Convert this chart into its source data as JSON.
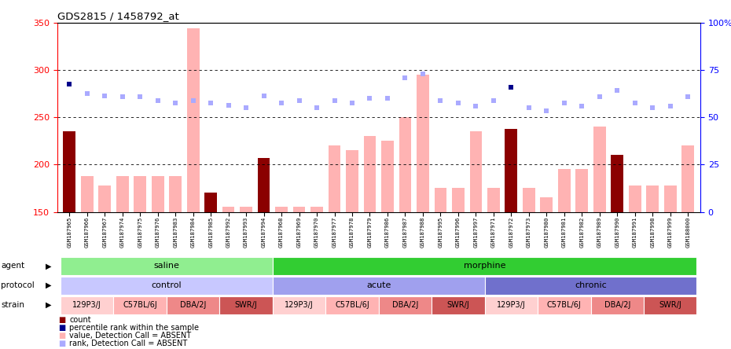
{
  "title": "GDS2815 / 1458792_at",
  "samples": [
    "GSM187965",
    "GSM187966",
    "GSM187967",
    "GSM187974",
    "GSM187975",
    "GSM187976",
    "GSM187983",
    "GSM187984",
    "GSM187985",
    "GSM187992",
    "GSM187993",
    "GSM187994",
    "GSM187968",
    "GSM187969",
    "GSM187970",
    "GSM187977",
    "GSM187978",
    "GSM187979",
    "GSM187986",
    "GSM187987",
    "GSM187988",
    "GSM187995",
    "GSM187996",
    "GSM187997",
    "GSM187971",
    "GSM187972",
    "GSM187973",
    "GSM187980",
    "GSM187981",
    "GSM187982",
    "GSM187989",
    "GSM187990",
    "GSM187991",
    "GSM187998",
    "GSM187999",
    "GSM188000"
  ],
  "bar_values": [
    235,
    188,
    178,
    188,
    188,
    188,
    188,
    344,
    170,
    155,
    155,
    207,
    155,
    155,
    155,
    220,
    215,
    230,
    225,
    250,
    295,
    175,
    175,
    235,
    175,
    238,
    175,
    165,
    195,
    195,
    240,
    210,
    178,
    178,
    178,
    220
  ],
  "bar_colors": [
    "#8B0000",
    "#ffb3b3",
    "#ffb3b3",
    "#ffb3b3",
    "#ffb3b3",
    "#ffb3b3",
    "#ffb3b3",
    "#ffb3b3",
    "#8B0000",
    "#ffb3b3",
    "#ffb3b3",
    "#8B0000",
    "#ffb3b3",
    "#ffb3b3",
    "#ffb3b3",
    "#ffb3b3",
    "#ffb3b3",
    "#ffb3b3",
    "#ffb3b3",
    "#ffb3b3",
    "#ffb3b3",
    "#ffb3b3",
    "#ffb3b3",
    "#ffb3b3",
    "#ffb3b3",
    "#8B0000",
    "#ffb3b3",
    "#ffb3b3",
    "#ffb3b3",
    "#ffb3b3",
    "#ffb3b3",
    "#8B0000",
    "#ffb3b3",
    "#ffb3b3",
    "#ffb3b3",
    "#ffb3b3"
  ],
  "rank_values": [
    285,
    275,
    273,
    272,
    272,
    268,
    265,
    268,
    265,
    263,
    260,
    273,
    265,
    268,
    260,
    268,
    265,
    270,
    270,
    292,
    296,
    268,
    265,
    262,
    268,
    282,
    260,
    257,
    265,
    262,
    272,
    278,
    265,
    260,
    262,
    272
  ],
  "rank_colors": [
    "#00008B",
    "#aaaaff",
    "#aaaaff",
    "#aaaaff",
    "#aaaaff",
    "#aaaaff",
    "#aaaaff",
    "#aaaaff",
    "#aaaaff",
    "#aaaaff",
    "#aaaaff",
    "#aaaaff",
    "#aaaaff",
    "#aaaaff",
    "#aaaaff",
    "#aaaaff",
    "#aaaaff",
    "#aaaaff",
    "#aaaaff",
    "#aaaaff",
    "#aaaaff",
    "#aaaaff",
    "#aaaaff",
    "#aaaaff",
    "#aaaaff",
    "#00008B",
    "#aaaaff",
    "#aaaaff",
    "#aaaaff",
    "#aaaaff",
    "#aaaaff",
    "#aaaaff",
    "#aaaaff",
    "#aaaaff",
    "#aaaaff",
    "#aaaaff"
  ],
  "ylim_left": [
    150,
    350
  ],
  "ylim_right": [
    0,
    100
  ],
  "yticks_left": [
    150,
    200,
    250,
    300,
    350
  ],
  "yticks_right": [
    0,
    25,
    50,
    75,
    100
  ],
  "ytick_dotted": [
    200,
    250,
    300
  ],
  "agent_groups": [
    {
      "label": "saline",
      "start": 0,
      "end": 12,
      "color": "#90EE90"
    },
    {
      "label": "morphine",
      "start": 12,
      "end": 36,
      "color": "#32CD32"
    }
  ],
  "protocol_groups": [
    {
      "label": "control",
      "start": 0,
      "end": 12,
      "color": "#c8c8ff"
    },
    {
      "label": "acute",
      "start": 12,
      "end": 24,
      "color": "#a0a0ee"
    },
    {
      "label": "chronic",
      "start": 24,
      "end": 36,
      "color": "#7070cc"
    }
  ],
  "strain_groups": [
    {
      "label": "129P3/J",
      "start": 0,
      "end": 3,
      "color": "#ffd0d0"
    },
    {
      "label": "C57BL/6J",
      "start": 3,
      "end": 6,
      "color": "#ffb3b3"
    },
    {
      "label": "DBA/2J",
      "start": 6,
      "end": 9,
      "color": "#ee8888"
    },
    {
      "label": "SWR/J",
      "start": 9,
      "end": 12,
      "color": "#cc5555"
    },
    {
      "label": "129P3/J",
      "start": 12,
      "end": 15,
      "color": "#ffd0d0"
    },
    {
      "label": "C57BL/6J",
      "start": 15,
      "end": 18,
      "color": "#ffb3b3"
    },
    {
      "label": "DBA/2J",
      "start": 18,
      "end": 21,
      "color": "#ee8888"
    },
    {
      "label": "SWR/J",
      "start": 21,
      "end": 24,
      "color": "#cc5555"
    },
    {
      "label": "129P3/J",
      "start": 24,
      "end": 27,
      "color": "#ffd0d0"
    },
    {
      "label": "C57BL/6J",
      "start": 27,
      "end": 30,
      "color": "#ffb3b3"
    },
    {
      "label": "DBA/2J",
      "start": 30,
      "end": 33,
      "color": "#ee8888"
    },
    {
      "label": "SWR/J",
      "start": 33,
      "end": 36,
      "color": "#cc5555"
    }
  ],
  "legend_items": [
    {
      "color": "#8B0000",
      "marker": "s",
      "label": "count"
    },
    {
      "color": "#00008B",
      "marker": "s",
      "label": "percentile rank within the sample"
    },
    {
      "color": "#ffb3b3",
      "marker": "s",
      "label": "value, Detection Call = ABSENT"
    },
    {
      "color": "#aaaaff",
      "marker": "s",
      "label": "rank, Detection Call = ABSENT"
    }
  ]
}
